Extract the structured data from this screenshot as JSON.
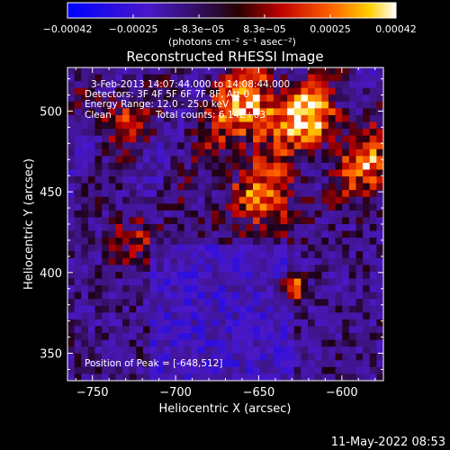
{
  "chart_data": {
    "type": "heatmap",
    "title": "Reconstructed RHESSI Image",
    "xlabel": "Heliocentric X (arcsec)",
    "ylabel": "Heliocentric Y (arcsec)",
    "xlim": [
      -765,
      -575
    ],
    "ylim": [
      333,
      527
    ],
    "x_ticks": [
      -750,
      -700,
      -650,
      -600
    ],
    "x_tick_labels": [
      "−750",
      "−700",
      "−650",
      "−600"
    ],
    "y_ticks": [
      350,
      400,
      450,
      500
    ],
    "y_tick_labels": [
      "350",
      "400",
      "450",
      "500"
    ],
    "colorbar": {
      "range": [
        -0.00042,
        0.00042
      ],
      "tick_labels": [
        "−0.00042",
        "−0.00025",
        "−8.3e−05",
        "8.3e−05",
        "0.00025",
        "0.00042"
      ],
      "unit_label": "(photons cm⁻² s⁻¹ asec⁻²)"
    },
    "annotations": {
      "time": "3-Feb-2013 14:07:44.000 to 14:08:44.000",
      "detectors": "Detectors: 3F 4F 5F 6F 7F 8F, Att 0",
      "energy": "Energy Range: 12.0 - 25.0 keV",
      "method": "Clean",
      "counts": "Total counts: 6.14E+03",
      "peak": "Position of Peak = [-648,512]"
    },
    "timestamp": "11-May-2022 08:53"
  }
}
